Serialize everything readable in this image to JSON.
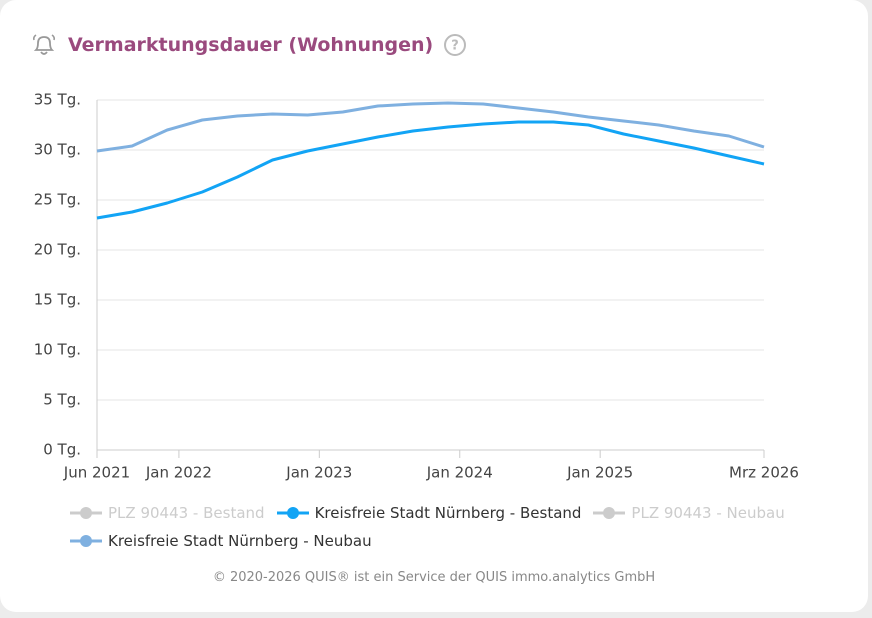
{
  "chart_data": {
    "type": "line",
    "title": "Vermarktungsdauer (Wohnungen)",
    "footer": "© 2020-2026 QUIS® ist ein Service der QUIS immo.analytics GmbH",
    "x": [
      "2021-06",
      "2021-09",
      "2021-12",
      "2022-03",
      "2022-06",
      "2022-09",
      "2022-12",
      "2023-03",
      "2023-06",
      "2023-09",
      "2023-12",
      "2024-03",
      "2024-06",
      "2024-09",
      "2024-12",
      "2025-03",
      "2025-06",
      "2025-09",
      "2025-12",
      "2026-03"
    ],
    "xlim": [
      "2021-06",
      "2026-03"
    ],
    "xticks": [
      {
        "value": "2021-06",
        "label": "Jun 2021"
      },
      {
        "value": "2022-01",
        "label": "Jan 2022"
      },
      {
        "value": "2023-01",
        "label": "Jan 2023"
      },
      {
        "value": "2024-01",
        "label": "Jan 2024"
      },
      {
        "value": "2025-01",
        "label": "Jan 2025"
      },
      {
        "value": "2026-03",
        "label": "Mrz 2026"
      }
    ],
    "ylim": [
      0,
      35
    ],
    "yticks": [
      {
        "value": 0,
        "label": "0 Tg."
      },
      {
        "value": 5,
        "label": "5 Tg."
      },
      {
        "value": 10,
        "label": "10 Tg."
      },
      {
        "value": 15,
        "label": "15 Tg."
      },
      {
        "value": 20,
        "label": "20 Tg."
      },
      {
        "value": 25,
        "label": "25 Tg."
      },
      {
        "value": 30,
        "label": "30 Tg."
      },
      {
        "value": 35,
        "label": "35 Tg."
      }
    ],
    "grid": true,
    "series": [
      {
        "name": "PLZ 90443 - Bestand",
        "color": "#cccccc",
        "visible": false,
        "values": [
          null,
          null,
          null,
          null,
          null,
          null,
          null,
          null,
          null,
          null,
          null,
          null,
          null,
          null,
          null,
          null,
          null,
          null,
          null,
          null
        ]
      },
      {
        "name": "Kreisfreie Stadt Nürnberg - Bestand",
        "color": "#12a4f5",
        "visible": true,
        "values": [
          23.2,
          23.8,
          24.7,
          25.8,
          27.3,
          29.0,
          29.9,
          30.6,
          31.3,
          31.9,
          32.3,
          32.6,
          32.8,
          32.8,
          32.5,
          31.6,
          30.9,
          30.2,
          29.4,
          28.6
        ]
      },
      {
        "name": "PLZ 90443 - Neubau",
        "color": "#cccccc",
        "visible": false,
        "values": [
          null,
          null,
          null,
          null,
          null,
          null,
          null,
          null,
          null,
          null,
          null,
          null,
          null,
          null,
          null,
          null,
          null,
          null,
          null,
          null
        ]
      },
      {
        "name": "Kreisfreie Stadt Nürnberg - Neubau",
        "color": "#7fb0e0",
        "visible": true,
        "values": [
          29.9,
          30.4,
          32.0,
          33.0,
          33.4,
          33.6,
          33.5,
          33.8,
          34.4,
          34.6,
          34.7,
          34.6,
          34.2,
          33.8,
          33.3,
          32.9,
          32.5,
          31.9,
          31.4,
          30.3
        ]
      }
    ]
  }
}
